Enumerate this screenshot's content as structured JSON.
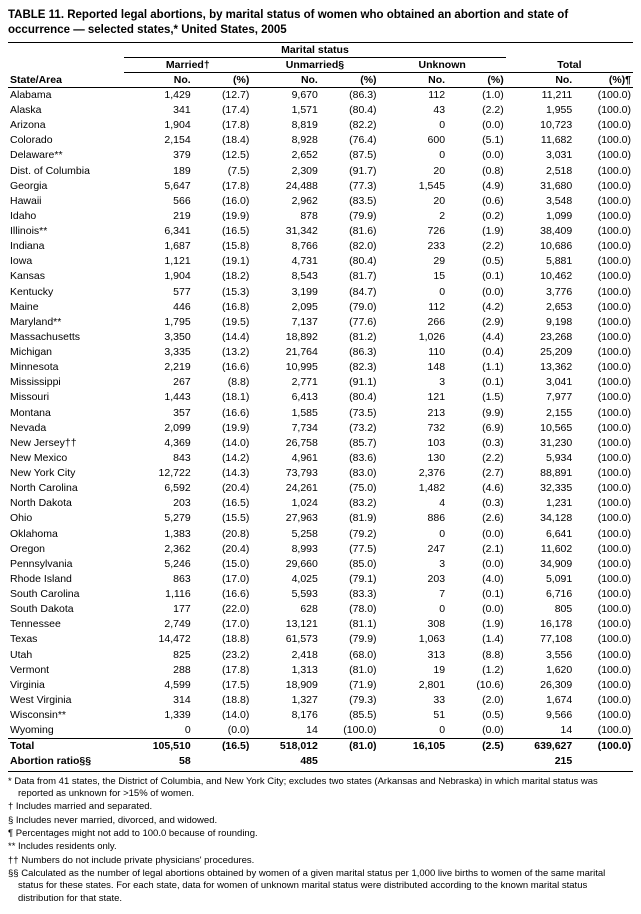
{
  "title": "TABLE 11. Reported legal abortions, by marital status of women who obtained an abortion and state of occurrence — selected states,* United States, 2005",
  "super_header": "Marital status",
  "groups": [
    "Married†",
    "Unmarried§",
    "Unknown",
    "Total"
  ],
  "col_state": "State/Area",
  "col_no": "No.",
  "col_pct": "(%)",
  "col_pct_total": "(%)¶",
  "rows": [
    {
      "s": "Alabama",
      "m_n": "1,429",
      "m_p": "(12.7)",
      "u_n": "9,670",
      "u_p": "(86.3)",
      "k_n": "112",
      "k_p": "(1.0)",
      "t_n": "11,211",
      "t_p": "(100.0)"
    },
    {
      "s": "Alaska",
      "m_n": "341",
      "m_p": "(17.4)",
      "u_n": "1,571",
      "u_p": "(80.4)",
      "k_n": "43",
      "k_p": "(2.2)",
      "t_n": "1,955",
      "t_p": "(100.0)"
    },
    {
      "s": "Arizona",
      "m_n": "1,904",
      "m_p": "(17.8)",
      "u_n": "8,819",
      "u_p": "(82.2)",
      "k_n": "0",
      "k_p": "(0.0)",
      "t_n": "10,723",
      "t_p": "(100.0)"
    },
    {
      "s": "Colorado",
      "m_n": "2,154",
      "m_p": "(18.4)",
      "u_n": "8,928",
      "u_p": "(76.4)",
      "k_n": "600",
      "k_p": "(5.1)",
      "t_n": "11,682",
      "t_p": "(100.0)"
    },
    {
      "s": "Delaware**",
      "m_n": "379",
      "m_p": "(12.5)",
      "u_n": "2,652",
      "u_p": "(87.5)",
      "k_n": "0",
      "k_p": "(0.0)",
      "t_n": "3,031",
      "t_p": "(100.0)"
    },
    {
      "s": "Dist. of Columbia",
      "m_n": "189",
      "m_p": "(7.5)",
      "u_n": "2,309",
      "u_p": "(91.7)",
      "k_n": "20",
      "k_p": "(0.8)",
      "t_n": "2,518",
      "t_p": "(100.0)"
    },
    {
      "s": "Georgia",
      "m_n": "5,647",
      "m_p": "(17.8)",
      "u_n": "24,488",
      "u_p": "(77.3)",
      "k_n": "1,545",
      "k_p": "(4.9)",
      "t_n": "31,680",
      "t_p": "(100.0)"
    },
    {
      "s": "Hawaii",
      "m_n": "566",
      "m_p": "(16.0)",
      "u_n": "2,962",
      "u_p": "(83.5)",
      "k_n": "20",
      "k_p": "(0.6)",
      "t_n": "3,548",
      "t_p": "(100.0)"
    },
    {
      "s": "Idaho",
      "m_n": "219",
      "m_p": "(19.9)",
      "u_n": "878",
      "u_p": "(79.9)",
      "k_n": "2",
      "k_p": "(0.2)",
      "t_n": "1,099",
      "t_p": "(100.0)"
    },
    {
      "s": "Illinois**",
      "m_n": "6,341",
      "m_p": "(16.5)",
      "u_n": "31,342",
      "u_p": "(81.6)",
      "k_n": "726",
      "k_p": "(1.9)",
      "t_n": "38,409",
      "t_p": "(100.0)"
    },
    {
      "s": "Indiana",
      "m_n": "1,687",
      "m_p": "(15.8)",
      "u_n": "8,766",
      "u_p": "(82.0)",
      "k_n": "233",
      "k_p": "(2.2)",
      "t_n": "10,686",
      "t_p": "(100.0)"
    },
    {
      "s": "Iowa",
      "m_n": "1,121",
      "m_p": "(19.1)",
      "u_n": "4,731",
      "u_p": "(80.4)",
      "k_n": "29",
      "k_p": "(0.5)",
      "t_n": "5,881",
      "t_p": "(100.0)"
    },
    {
      "s": "Kansas",
      "m_n": "1,904",
      "m_p": "(18.2)",
      "u_n": "8,543",
      "u_p": "(81.7)",
      "k_n": "15",
      "k_p": "(0.1)",
      "t_n": "10,462",
      "t_p": "(100.0)"
    },
    {
      "s": "Kentucky",
      "m_n": "577",
      "m_p": "(15.3)",
      "u_n": "3,199",
      "u_p": "(84.7)",
      "k_n": "0",
      "k_p": "(0.0)",
      "t_n": "3,776",
      "t_p": "(100.0)"
    },
    {
      "s": "Maine",
      "m_n": "446",
      "m_p": "(16.8)",
      "u_n": "2,095",
      "u_p": "(79.0)",
      "k_n": "112",
      "k_p": "(4.2)",
      "t_n": "2,653",
      "t_p": "(100.0)"
    },
    {
      "s": "Maryland**",
      "m_n": "1,795",
      "m_p": "(19.5)",
      "u_n": "7,137",
      "u_p": "(77.6)",
      "k_n": "266",
      "k_p": "(2.9)",
      "t_n": "9,198",
      "t_p": "(100.0)"
    },
    {
      "s": "Massachusetts",
      "m_n": "3,350",
      "m_p": "(14.4)",
      "u_n": "18,892",
      "u_p": "(81.2)",
      "k_n": "1,026",
      "k_p": "(4.4)",
      "t_n": "23,268",
      "t_p": "(100.0)"
    },
    {
      "s": "Michigan",
      "m_n": "3,335",
      "m_p": "(13.2)",
      "u_n": "21,764",
      "u_p": "(86.3)",
      "k_n": "110",
      "k_p": "(0.4)",
      "t_n": "25,209",
      "t_p": "(100.0)"
    },
    {
      "s": "Minnesota",
      "m_n": "2,219",
      "m_p": "(16.6)",
      "u_n": "10,995",
      "u_p": "(82.3)",
      "k_n": "148",
      "k_p": "(1.1)",
      "t_n": "13,362",
      "t_p": "(100.0)"
    },
    {
      "s": "Mississippi",
      "m_n": "267",
      "m_p": "(8.8)",
      "u_n": "2,771",
      "u_p": "(91.1)",
      "k_n": "3",
      "k_p": "(0.1)",
      "t_n": "3,041",
      "t_p": "(100.0)"
    },
    {
      "s": "Missouri",
      "m_n": "1,443",
      "m_p": "(18.1)",
      "u_n": "6,413",
      "u_p": "(80.4)",
      "k_n": "121",
      "k_p": "(1.5)",
      "t_n": "7,977",
      "t_p": "(100.0)"
    },
    {
      "s": "Montana",
      "m_n": "357",
      "m_p": "(16.6)",
      "u_n": "1,585",
      "u_p": "(73.5)",
      "k_n": "213",
      "k_p": "(9.9)",
      "t_n": "2,155",
      "t_p": "(100.0)"
    },
    {
      "s": "Nevada",
      "m_n": "2,099",
      "m_p": "(19.9)",
      "u_n": "7,734",
      "u_p": "(73.2)",
      "k_n": "732",
      "k_p": "(6.9)",
      "t_n": "10,565",
      "t_p": "(100.0)"
    },
    {
      "s": "New Jersey††",
      "m_n": "4,369",
      "m_p": "(14.0)",
      "u_n": "26,758",
      "u_p": "(85.7)",
      "k_n": "103",
      "k_p": "(0.3)",
      "t_n": "31,230",
      "t_p": "(100.0)"
    },
    {
      "s": "New Mexico",
      "m_n": "843",
      "m_p": "(14.2)",
      "u_n": "4,961",
      "u_p": "(83.6)",
      "k_n": "130",
      "k_p": "(2.2)",
      "t_n": "5,934",
      "t_p": "(100.0)"
    },
    {
      "s": "New York City",
      "m_n": "12,722",
      "m_p": "(14.3)",
      "u_n": "73,793",
      "u_p": "(83.0)",
      "k_n": "2,376",
      "k_p": "(2.7)",
      "t_n": "88,891",
      "t_p": "(100.0)"
    },
    {
      "s": "North Carolina",
      "m_n": "6,592",
      "m_p": "(20.4)",
      "u_n": "24,261",
      "u_p": "(75.0)",
      "k_n": "1,482",
      "k_p": "(4.6)",
      "t_n": "32,335",
      "t_p": "(100.0)"
    },
    {
      "s": "North Dakota",
      "m_n": "203",
      "m_p": "(16.5)",
      "u_n": "1,024",
      "u_p": "(83.2)",
      "k_n": "4",
      "k_p": "(0.3)",
      "t_n": "1,231",
      "t_p": "(100.0)"
    },
    {
      "s": "Ohio",
      "m_n": "5,279",
      "m_p": "(15.5)",
      "u_n": "27,963",
      "u_p": "(81.9)",
      "k_n": "886",
      "k_p": "(2.6)",
      "t_n": "34,128",
      "t_p": "(100.0)"
    },
    {
      "s": "Oklahoma",
      "m_n": "1,383",
      "m_p": "(20.8)",
      "u_n": "5,258",
      "u_p": "(79.2)",
      "k_n": "0",
      "k_p": "(0.0)",
      "t_n": "6,641",
      "t_p": "(100.0)"
    },
    {
      "s": "Oregon",
      "m_n": "2,362",
      "m_p": "(20.4)",
      "u_n": "8,993",
      "u_p": "(77.5)",
      "k_n": "247",
      "k_p": "(2.1)",
      "t_n": "11,602",
      "t_p": "(100.0)"
    },
    {
      "s": "Pennsylvania",
      "m_n": "5,246",
      "m_p": "(15.0)",
      "u_n": "29,660",
      "u_p": "(85.0)",
      "k_n": "3",
      "k_p": "(0.0)",
      "t_n": "34,909",
      "t_p": "(100.0)"
    },
    {
      "s": "Rhode Island",
      "m_n": "863",
      "m_p": "(17.0)",
      "u_n": "4,025",
      "u_p": "(79.1)",
      "k_n": "203",
      "k_p": "(4.0)",
      "t_n": "5,091",
      "t_p": "(100.0)"
    },
    {
      "s": "South Carolina",
      "m_n": "1,116",
      "m_p": "(16.6)",
      "u_n": "5,593",
      "u_p": "(83.3)",
      "k_n": "7",
      "k_p": "(0.1)",
      "t_n": "6,716",
      "t_p": "(100.0)"
    },
    {
      "s": "South Dakota",
      "m_n": "177",
      "m_p": "(22.0)",
      "u_n": "628",
      "u_p": "(78.0)",
      "k_n": "0",
      "k_p": "(0.0)",
      "t_n": "805",
      "t_p": "(100.0)"
    },
    {
      "s": "Tennessee",
      "m_n": "2,749",
      "m_p": "(17.0)",
      "u_n": "13,121",
      "u_p": "(81.1)",
      "k_n": "308",
      "k_p": "(1.9)",
      "t_n": "16,178",
      "t_p": "(100.0)"
    },
    {
      "s": "Texas",
      "m_n": "14,472",
      "m_p": "(18.8)",
      "u_n": "61,573",
      "u_p": "(79.9)",
      "k_n": "1,063",
      "k_p": "(1.4)",
      "t_n": "77,108",
      "t_p": "(100.0)"
    },
    {
      "s": "Utah",
      "m_n": "825",
      "m_p": "(23.2)",
      "u_n": "2,418",
      "u_p": "(68.0)",
      "k_n": "313",
      "k_p": "(8.8)",
      "t_n": "3,556",
      "t_p": "(100.0)"
    },
    {
      "s": "Vermont",
      "m_n": "288",
      "m_p": "(17.8)",
      "u_n": "1,313",
      "u_p": "(81.0)",
      "k_n": "19",
      "k_p": "(1.2)",
      "t_n": "1,620",
      "t_p": "(100.0)"
    },
    {
      "s": "Virginia",
      "m_n": "4,599",
      "m_p": "(17.5)",
      "u_n": "18,909",
      "u_p": "(71.9)",
      "k_n": "2,801",
      "k_p": "(10.6)",
      "t_n": "26,309",
      "t_p": "(100.0)"
    },
    {
      "s": "West Virginia",
      "m_n": "314",
      "m_p": "(18.8)",
      "u_n": "1,327",
      "u_p": "(79.3)",
      "k_n": "33",
      "k_p": "(2.0)",
      "t_n": "1,674",
      "t_p": "(100.0)"
    },
    {
      "s": "Wisconsin**",
      "m_n": "1,339",
      "m_p": "(14.0)",
      "u_n": "8,176",
      "u_p": "(85.5)",
      "k_n": "51",
      "k_p": "(0.5)",
      "t_n": "9,566",
      "t_p": "(100.0)"
    },
    {
      "s": "Wyoming",
      "m_n": "0",
      "m_p": "(0.0)",
      "u_n": "14",
      "u_p": "(100.0)",
      "k_n": "0",
      "k_p": "(0.0)",
      "t_n": "14",
      "t_p": "(100.0)"
    }
  ],
  "total": {
    "s": "Total",
    "m_n": "105,510",
    "m_p": "(16.5)",
    "u_n": "518,012",
    "u_p": "(81.0)",
    "k_n": "16,105",
    "k_p": "(2.5)",
    "t_n": "639,627",
    "t_p": "(100.0)"
  },
  "abr": {
    "s": "Abortion ratio§§",
    "m_n": "58",
    "u_n": "485",
    "t_n": "215"
  },
  "footnotes": [
    "* Data from 41 states, the District of Columbia, and New York City; excludes two states (Arkansas and Nebraska) in which marital status was reported as unknown for >15% of women.",
    "† Includes married and separated.",
    "§ Includes never married, divorced, and widowed.",
    "¶ Percentages might not add to 100.0 because of rounding.",
    "** Includes residents only.",
    "†† Numbers do not include private physicians' procedures.",
    "§§ Calculated as the number of legal abortions obtained by women of a given marital status per 1,000 live births to women of the same marital status for these states. For each state, data for women of unknown marital status were distributed according to the known marital status distribution for that state."
  ]
}
